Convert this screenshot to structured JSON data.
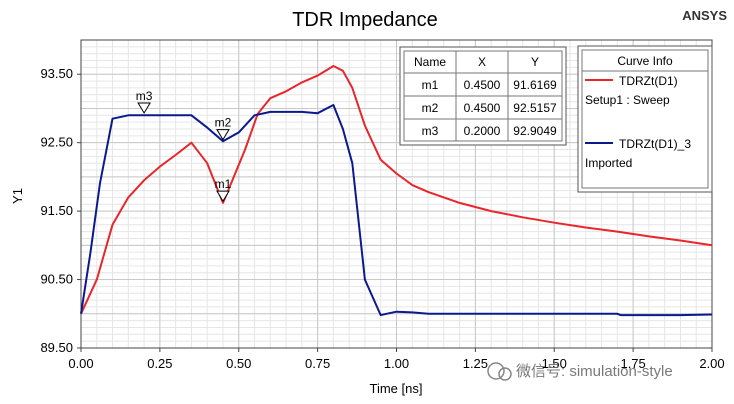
{
  "header": {
    "title": "TDR Impedance",
    "brand": "ANSYS"
  },
  "watermark": "微信号: simulation-style",
  "chart_data": {
    "type": "line",
    "title": "TDR Impedance",
    "xlabel": "Time [ns]",
    "ylabel": "Y1",
    "xlim": [
      0,
      2
    ],
    "ylim": [
      89.5,
      94.0
    ],
    "x_ticks": [
      0.0,
      0.25,
      0.5,
      0.75,
      1.0,
      1.25,
      1.5,
      1.75,
      2.0
    ],
    "x_tick_labels": [
      "0.00",
      "0.25",
      "0.50",
      "0.75",
      "1.00",
      "1.25",
      "1.50",
      "1.75",
      "2.00"
    ],
    "y_ticks": [
      89.5,
      90.5,
      91.5,
      92.5,
      93.5
    ],
    "y_tick_labels": [
      "89.50",
      "90.50",
      "91.50",
      "92.50",
      "93.50"
    ],
    "grid": true,
    "series": [
      {
        "name": "TDRZt(D1)",
        "subtitle": "Setup1 : Sweep",
        "color": "#e8262b",
        "points": [
          [
            0,
            90.0
          ],
          [
            0.05,
            90.5
          ],
          [
            0.1,
            91.3
          ],
          [
            0.15,
            91.7
          ],
          [
            0.2,
            91.95
          ],
          [
            0.25,
            92.15
          ],
          [
            0.3,
            92.32
          ],
          [
            0.35,
            92.5
          ],
          [
            0.4,
            92.2
          ],
          [
            0.43,
            91.85
          ],
          [
            0.45,
            91.62
          ],
          [
            0.48,
            91.95
          ],
          [
            0.52,
            92.4
          ],
          [
            0.56,
            92.92
          ],
          [
            0.6,
            93.15
          ],
          [
            0.65,
            93.25
          ],
          [
            0.7,
            93.38
          ],
          [
            0.75,
            93.48
          ],
          [
            0.8,
            93.62
          ],
          [
            0.83,
            93.55
          ],
          [
            0.86,
            93.3
          ],
          [
            0.9,
            92.75
          ],
          [
            0.95,
            92.25
          ],
          [
            1.0,
            92.05
          ],
          [
            1.05,
            91.88
          ],
          [
            1.1,
            91.78
          ],
          [
            1.2,
            91.62
          ],
          [
            1.3,
            91.5
          ],
          [
            1.4,
            91.41
          ],
          [
            1.5,
            91.33
          ],
          [
            1.6,
            91.26
          ],
          [
            1.7,
            91.2
          ],
          [
            1.8,
            91.13
          ],
          [
            1.9,
            91.07
          ],
          [
            2.0,
            91.0
          ]
        ]
      },
      {
        "name": "TDRZt(D1)_3",
        "subtitle": "Imported",
        "color": "#0a1a8c",
        "points": [
          [
            0,
            90.0
          ],
          [
            0.03,
            90.9
          ],
          [
            0.06,
            91.9
          ],
          [
            0.1,
            92.85
          ],
          [
            0.15,
            92.9
          ],
          [
            0.2,
            92.9
          ],
          [
            0.25,
            92.9
          ],
          [
            0.3,
            92.9
          ],
          [
            0.35,
            92.9
          ],
          [
            0.4,
            92.72
          ],
          [
            0.45,
            92.52
          ],
          [
            0.5,
            92.65
          ],
          [
            0.55,
            92.9
          ],
          [
            0.6,
            92.95
          ],
          [
            0.65,
            92.95
          ],
          [
            0.7,
            92.95
          ],
          [
            0.75,
            92.93
          ],
          [
            0.8,
            93.05
          ],
          [
            0.83,
            92.7
          ],
          [
            0.86,
            92.2
          ],
          [
            0.9,
            90.5
          ],
          [
            0.95,
            89.98
          ],
          [
            1.0,
            90.03
          ],
          [
            1.05,
            90.02
          ],
          [
            1.1,
            90.0
          ],
          [
            1.3,
            90.0
          ],
          [
            1.5,
            90.0
          ],
          [
            1.7,
            90.0
          ],
          [
            1.71,
            89.98
          ],
          [
            1.9,
            89.98
          ],
          [
            2.0,
            89.99
          ]
        ]
      }
    ],
    "markers": [
      {
        "name": "m1",
        "x": 0.45,
        "y": 91.6169,
        "series": 0
      },
      {
        "name": "m2",
        "x": 0.45,
        "y": 92.5157,
        "series": 1
      },
      {
        "name": "m3",
        "x": 0.2,
        "y": 92.9049,
        "series": 1
      }
    ],
    "marker_table": {
      "headers": [
        "Name",
        "X",
        "Y"
      ],
      "rows": [
        [
          "m1",
          "0.4500",
          "91.6169"
        ],
        [
          "m2",
          "0.4500",
          "92.5157"
        ],
        [
          "m3",
          "0.2000",
          "92.9049"
        ]
      ]
    },
    "legend": {
      "title": "Curve Info",
      "position": "top-right"
    }
  }
}
